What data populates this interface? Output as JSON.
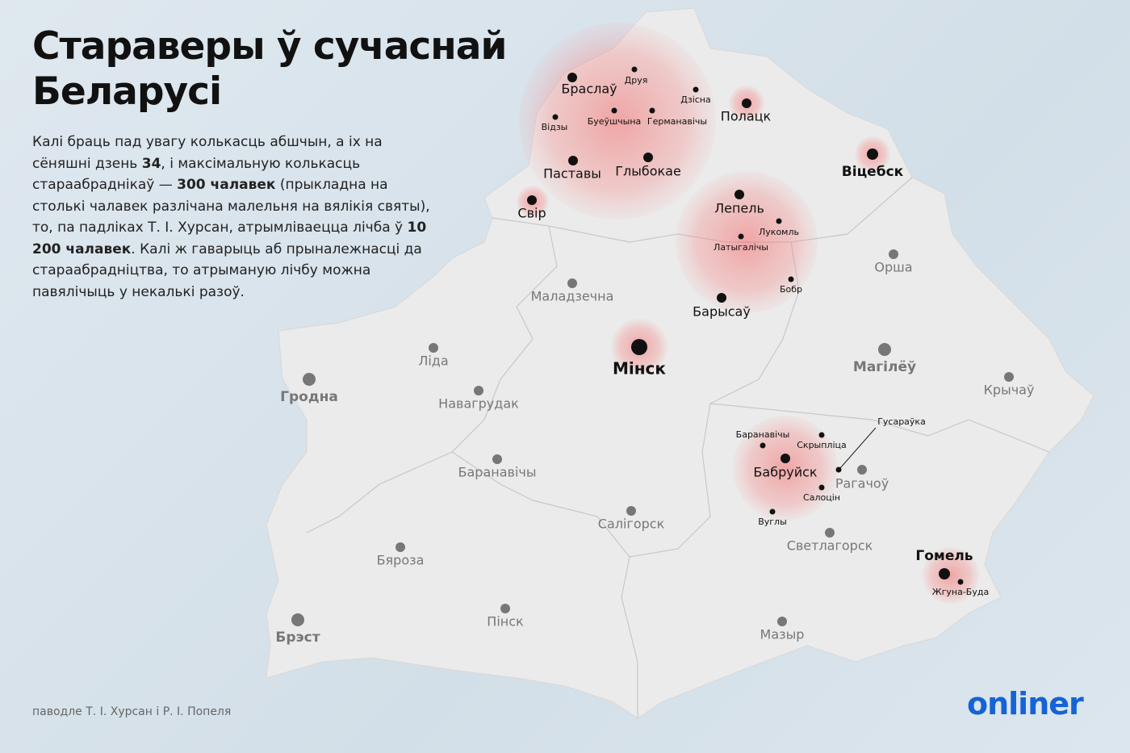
{
  "title": "Стараверы ў сучаснай Беларусі",
  "description": [
    "Калі браць пад увагу колькасць абшчын, а іх на сёняшні дзень ",
    "34",
    ", і максімальную колькасць стараабраднікаў — ",
    "300 чалавек",
    " (прыкладна на столькі чалавек разлічана малельня на вялікія святы), то, па падліках Т. І. Хурсан, атрымліваецца лічба ў ",
    "10 200 чалавек",
    ". Калі ж гаварыць аб прыналежнасці да стараабрадні­цтва, то атрыманую лічбу можна павялічыць у некалькі разоў."
  ],
  "cities": [
    "Браслаў",
    "Друя",
    "Дзісна",
    "Відзы",
    "Буеўшчына",
    "Германавічы",
    "Полацк",
    "Паставы",
    "Глыбокае",
    "Свір",
    "Віцебск",
    "Лепель",
    "Лукомль",
    "Латыгалічы",
    "Бобр",
    "Барысаў",
    "Мінск",
    "Баранавічы",
    "Скрыпліца",
    "Гусараўка",
    "Бабруйск",
    "Салоцін",
    "Вуглы",
    "Гомель",
    "Жгуна-Буда",
    "Орша",
    "Маладзечна",
    "Ліда",
    "Гродна",
    "Навагрудак",
    "Магілёў",
    "Крычаў",
    "Баранавічы",
    "Рагачоў",
    "Салігорск",
    "Бяроза",
    "Светлагорск",
    "Брэст",
    "Пінск",
    "Мазыр"
  ],
  "source": "паводле Т. І. Хурсан і Р. І. Попеля",
  "logo": "onliner"
}
